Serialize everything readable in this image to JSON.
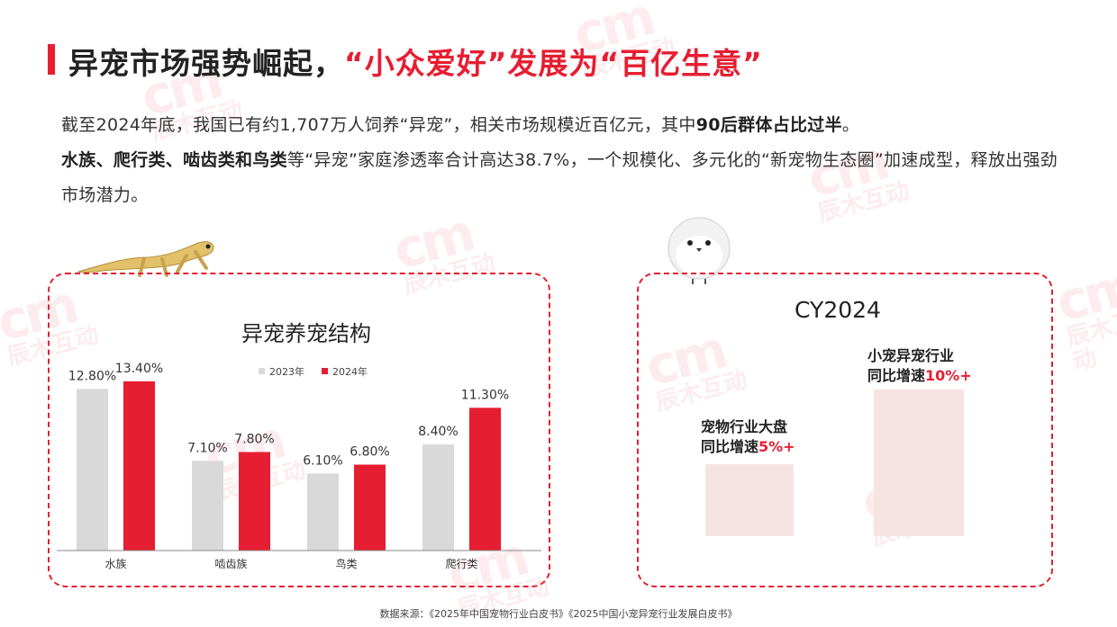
{
  "watermark": {
    "logo": "cm",
    "text": "辰木互动"
  },
  "header": {
    "title_part1": "异宠市场强势崛起，",
    "title_part2": "“小众爱好”发展为“百亿生意”"
  },
  "intro": {
    "line1_a": "截至2024年底，我国已有约1,707万人饲养“异宠”，相关市场规模近百亿元，其中",
    "line1_b": "90后群体占比过半",
    "line1_c": "。",
    "line2_a": "水族、爬行类、啮齿类和鸟类",
    "line2_b": "等“异宠”家庭渗透率合计高达38.7%，一个规模化、多元化的“新宠物生态圈”加速成型，释放出强劲市场潜力。"
  },
  "chart_data": {
    "type": "bar",
    "title": "异宠养宠结构",
    "categories": [
      "水族",
      "啮齿族",
      "鸟类",
      "爬行类"
    ],
    "series": [
      {
        "name": "2023年",
        "values": [
          12.8,
          7.1,
          6.1,
          8.4
        ],
        "labels": [
          "12.80%",
          "7.10%",
          "6.10%",
          "8.40%"
        ],
        "color": "#d9d9d9"
      },
      {
        "name": "2024年",
        "values": [
          13.4,
          7.8,
          6.8,
          11.3
        ],
        "labels": [
          "13.40%",
          "7.80%",
          "6.80%",
          "11.30%"
        ],
        "color": "#e61e32"
      }
    ],
    "legend": "top-center",
    "grid": false,
    "ylim": [
      0,
      14.6
    ]
  },
  "growth": {
    "title": "CY2024",
    "small_line1": "宠物行业大盘",
    "small_line2": "同比增速",
    "small_value": "5%+",
    "big_line1": "小宠异宠行业",
    "big_line2": "同比增速",
    "big_value": "10%+"
  },
  "footer": {
    "source": "数据来源：《2025年中国宠物行业白皮书》《2025中国小宠异宠行业发展白皮书》"
  },
  "colors": {
    "accent": "#e61e32",
    "bar2023": "#d9d9d9",
    "block": "#f6e4e2"
  }
}
